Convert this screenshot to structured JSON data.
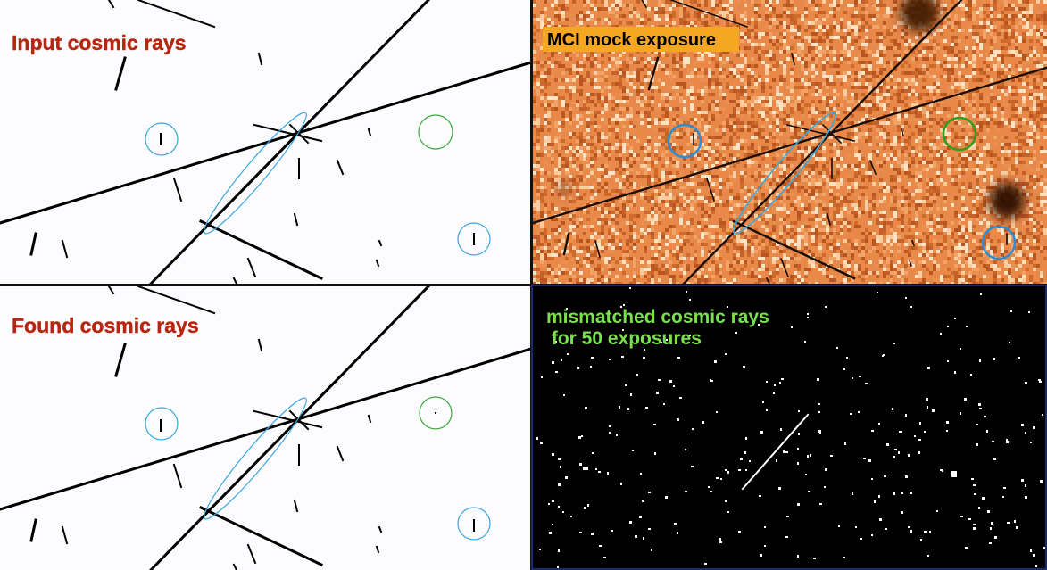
{
  "panels": {
    "input": {
      "title": "Input cosmic rays"
    },
    "mock": {
      "title": "MCI mock exposure"
    },
    "found": {
      "title": "Found cosmic rays"
    },
    "mismatch": {
      "title_line1": "mismatched cosmic rays",
      "title_line2": " for 50 exposures"
    }
  },
  "colors": {
    "title_red": "#b8250f",
    "title_mock_text": "#000000",
    "title_mock_bg": "#f5a623",
    "title_green": "#7be04e",
    "circle_blue": "#3aa7dd",
    "circle_green": "#3aa83a",
    "mock_base": "#e8894a",
    "mismatch_bg": "#000000"
  }
}
